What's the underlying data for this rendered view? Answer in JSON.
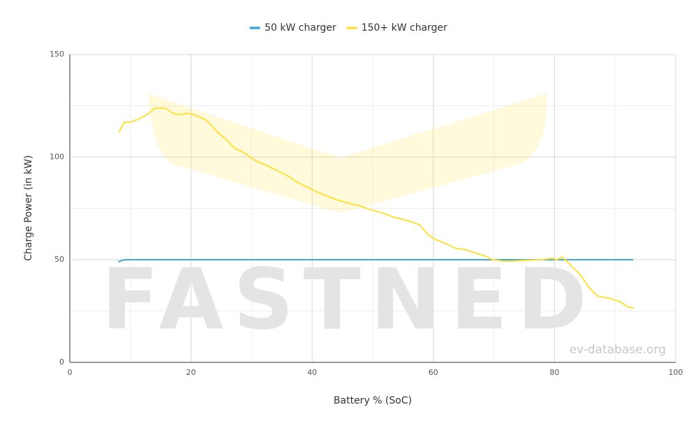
{
  "chart_data": {
    "type": "line",
    "x_label": "Battery % (SoC)",
    "y_label": "Charge Power (in kW)",
    "xlim": [
      0,
      100
    ],
    "xticks": [
      0,
      20,
      40,
      60,
      80,
      100
    ],
    "ylim": [
      0,
      150
    ],
    "yticks": [
      0,
      50,
      100,
      150
    ],
    "grid": true,
    "legend": "top",
    "annotations": [
      "FASTNED",
      "ev-database.org"
    ],
    "series": [
      {
        "name": "50 kW charger",
        "color": "#3fa9d8",
        "x": [
          8,
          9,
          93
        ],
        "values": [
          49,
          50,
          50
        ]
      },
      {
        "name": "150+ kW charger",
        "color": "#fde13a",
        "x": [
          8.1,
          9,
          10,
          11.5,
          12.9,
          14,
          15.7,
          17,
          18.2,
          19.4,
          20.7,
          22.1,
          23,
          24.2,
          25.6,
          27.2,
          29,
          30.6,
          32.7,
          34.6,
          36.2,
          37.3,
          39.2,
          40.8,
          42.2,
          44,
          45.6,
          47.5,
          49.5,
          51.6,
          53.5,
          55.8,
          57.8,
          59,
          60.1,
          61.8,
          63.8,
          65.2,
          66.8,
          68.4,
          69.8,
          71.7,
          72.8,
          75.1,
          77.9,
          79.5,
          80.4,
          81.3,
          82.7,
          84.3,
          85.7,
          87.1,
          88.9,
          90.8,
          92.2,
          93.1
        ],
        "values": [
          111.9,
          117,
          117,
          118.7,
          121,
          123.8,
          124,
          121.4,
          120.7,
          121.4,
          120.4,
          118.7,
          116.7,
          112.6,
          109.2,
          104.4,
          101.7,
          98.3,
          95.6,
          92.9,
          90.5,
          88.1,
          85.4,
          83,
          81.3,
          79.3,
          77.9,
          76.5,
          74.5,
          72.8,
          70.7,
          69,
          67,
          62.6,
          60.2,
          58.2,
          55.4,
          55.1,
          53.4,
          52,
          50,
          49.3,
          49.3,
          49.7,
          50,
          50.7,
          50,
          51.4,
          47.3,
          42.5,
          36.4,
          32.3,
          31.3,
          29.6,
          26.9,
          26.5
        ]
      }
    ]
  }
}
